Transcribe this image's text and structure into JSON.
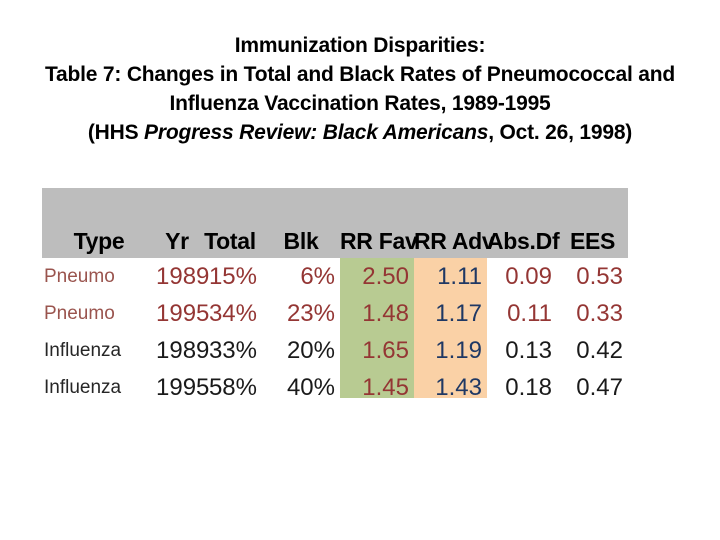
{
  "title": {
    "line1": "Immunization Disparities:",
    "line2": "Table 7: Changes in Total and Black Rates of Pneumococcal and",
    "line3": "Influenza Vaccination Rates, 1989-1995",
    "line4_prefix": "(HHS ",
    "line4_italic": "Progress Review: Black Americans",
    "line4_suffix": ", Oct. 26, 1998)"
  },
  "table": {
    "headers": {
      "type": "Type",
      "yr": "Yr",
      "total": "Total",
      "blk": "Blk",
      "rr_fav": "RR Fav",
      "rr_adv": "RR Adv",
      "abs_df": "Abs.Df",
      "ees": "EES"
    },
    "rows": [
      {
        "type": "Pneumo",
        "yr": "1989",
        "total": "15%",
        "blk": "6%",
        "rr_fav": "2.50",
        "rr_adv": "1.11",
        "abs_df": "0.09",
        "ees": "0.53"
      },
      {
        "type": "Pneumo",
        "yr": "1995",
        "total": "34%",
        "blk": "23%",
        "rr_fav": "1.48",
        "rr_adv": "1.17",
        "abs_df": "0.11",
        "ees": "0.33"
      },
      {
        "type": "Influenza",
        "yr": "1989",
        "total": "33%",
        "blk": "20%",
        "rr_fav": "1.65",
        "rr_adv": "1.19",
        "abs_df": "0.13",
        "ees": "0.42"
      },
      {
        "type": "Influenza",
        "yr": "1995",
        "total": "58%",
        "blk": "40%",
        "rr_fav": "1.45",
        "rr_adv": "1.43",
        "abs_df": "0.18",
        "ees": "0.47"
      }
    ],
    "colors": {
      "header_band": "#bdbdbd",
      "rr_fav_highlight": "#b8cb92",
      "rr_adv_highlight": "#fad1a6",
      "maroon_text": "#943634",
      "navy_text": "#1f3864",
      "black_text": "#1a1a1a"
    }
  },
  "chart_data": {
    "type": "table",
    "title": "Immunization Disparities: Table 7: Changes in Total and Black Rates of Pneumococcal and Influenza Vaccination Rates, 1989-1995 (HHS Progress Review: Black Americans, Oct. 26, 1998)",
    "columns": [
      "Type",
      "Yr",
      "Total",
      "Blk",
      "RR Fav",
      "RR Adv",
      "Abs.Df",
      "EES"
    ],
    "rows": [
      [
        "Pneumo",
        1989,
        "15%",
        "6%",
        2.5,
        1.11,
        0.09,
        0.53
      ],
      [
        "Pneumo",
        1995,
        "34%",
        "23%",
        1.48,
        1.17,
        0.11,
        0.33
      ],
      [
        "Influenza",
        1989,
        "33%",
        "20%",
        1.65,
        1.19,
        0.13,
        0.42
      ],
      [
        "Influenza",
        1995,
        "58%",
        "40%",
        1.45,
        1.43,
        0.18,
        0.47
      ]
    ],
    "highlighted_columns": {
      "RR Fav": "#b8cb92",
      "RR Adv": "#fad1a6"
    }
  }
}
